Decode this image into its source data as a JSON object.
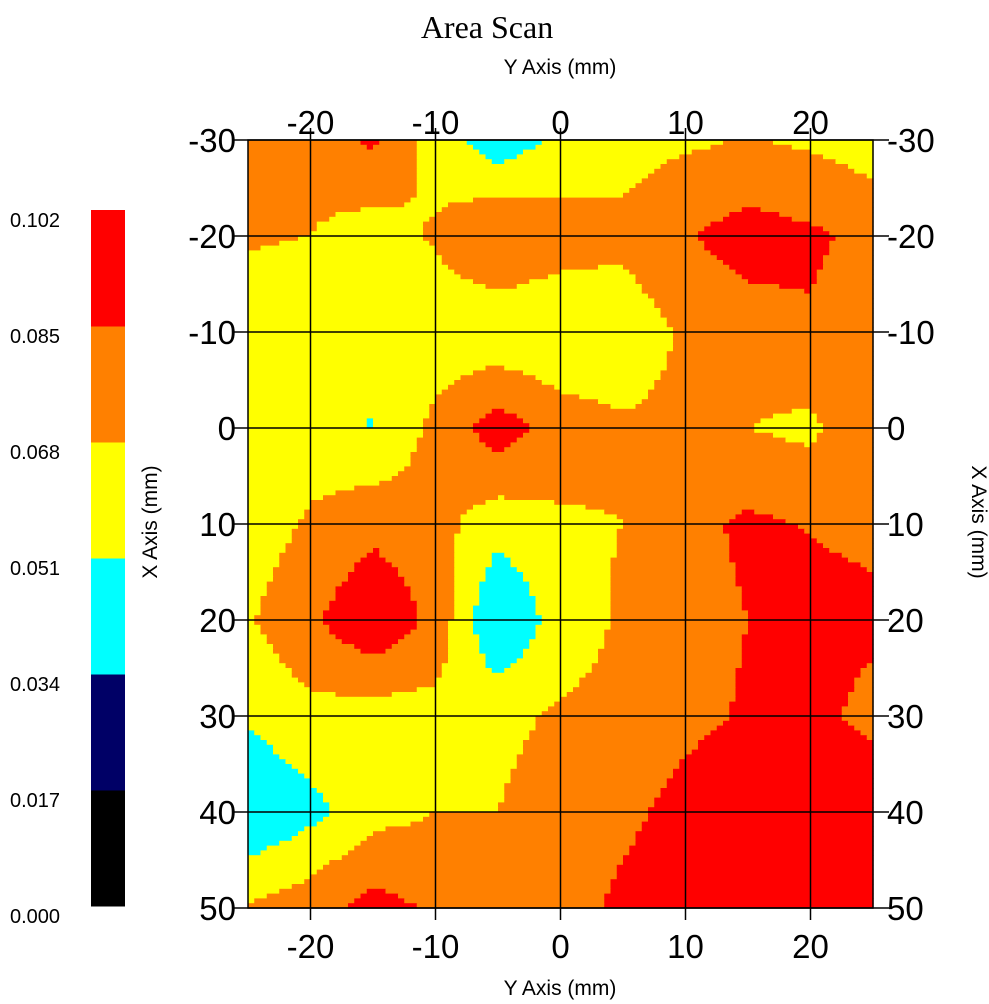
{
  "chart_data": {
    "type": "heatmap",
    "subtype": "filled-contour",
    "title": "Area Scan",
    "xlabel": "Y Axis (mm)",
    "ylabel": "X Axis (mm)",
    "x_ticks": [
      -20,
      -10,
      0,
      10,
      20
    ],
    "y_ticks": [
      -30,
      -20,
      -10,
      0,
      10,
      20,
      30,
      40,
      50
    ],
    "xlim": [
      -25,
      25
    ],
    "ylim": [
      -30,
      50
    ],
    "y_inverted": true,
    "grid": true,
    "colorbar": {
      "placement": "left",
      "levels": [
        0.0,
        0.017,
        0.034,
        0.051,
        0.068,
        0.085,
        0.102
      ],
      "labels": [
        "0.000",
        "0.017",
        "0.034",
        "0.051",
        "0.068",
        "0.085",
        "0.102"
      ],
      "colors": [
        "#000000",
        "#000066",
        "#00ffff",
        "#ffff00",
        "#ff8000",
        "#ff0000"
      ]
    },
    "x": [
      -25,
      -20,
      -15,
      -10,
      -5,
      0,
      5,
      10,
      15,
      20,
      25
    ],
    "y": [
      -30,
      -20,
      -10,
      0,
      10,
      20,
      30,
      40,
      50
    ],
    "z": [
      [
        0.069,
        0.074,
        0.088,
        0.061,
        0.04,
        0.055,
        0.062,
        0.065,
        0.069,
        0.065,
        0.06
      ],
      [
        0.07,
        0.068,
        0.06,
        0.07,
        0.086,
        0.076,
        0.072,
        0.084,
        0.092,
        0.088,
        0.08
      ],
      [
        0.058,
        0.052,
        0.055,
        0.057,
        0.054,
        0.054,
        0.058,
        0.07,
        0.078,
        0.083,
        0.074
      ],
      [
        0.068,
        0.06,
        0.05,
        0.073,
        0.094,
        0.076,
        0.07,
        0.072,
        0.068,
        0.064,
        0.086
      ],
      [
        0.059,
        0.07,
        0.08,
        0.074,
        0.058,
        0.066,
        0.068,
        0.08,
        0.088,
        0.084,
        0.08
      ],
      [
        0.066,
        0.082,
        0.1,
        0.08,
        0.032,
        0.06,
        0.07,
        0.079,
        0.085,
        0.092,
        0.09
      ],
      [
        0.054,
        0.063,
        0.06,
        0.062,
        0.064,
        0.07,
        0.072,
        0.08,
        0.087,
        0.092,
        0.078
      ],
      [
        0.034,
        0.046,
        0.062,
        0.068,
        0.068,
        0.076,
        0.08,
        0.092,
        0.1,
        0.103,
        0.103
      ],
      [
        0.07,
        0.078,
        0.092,
        0.082,
        0.07,
        0.074,
        0.09,
        0.1,
        0.106,
        0.108,
        0.106
      ]
    ]
  }
}
